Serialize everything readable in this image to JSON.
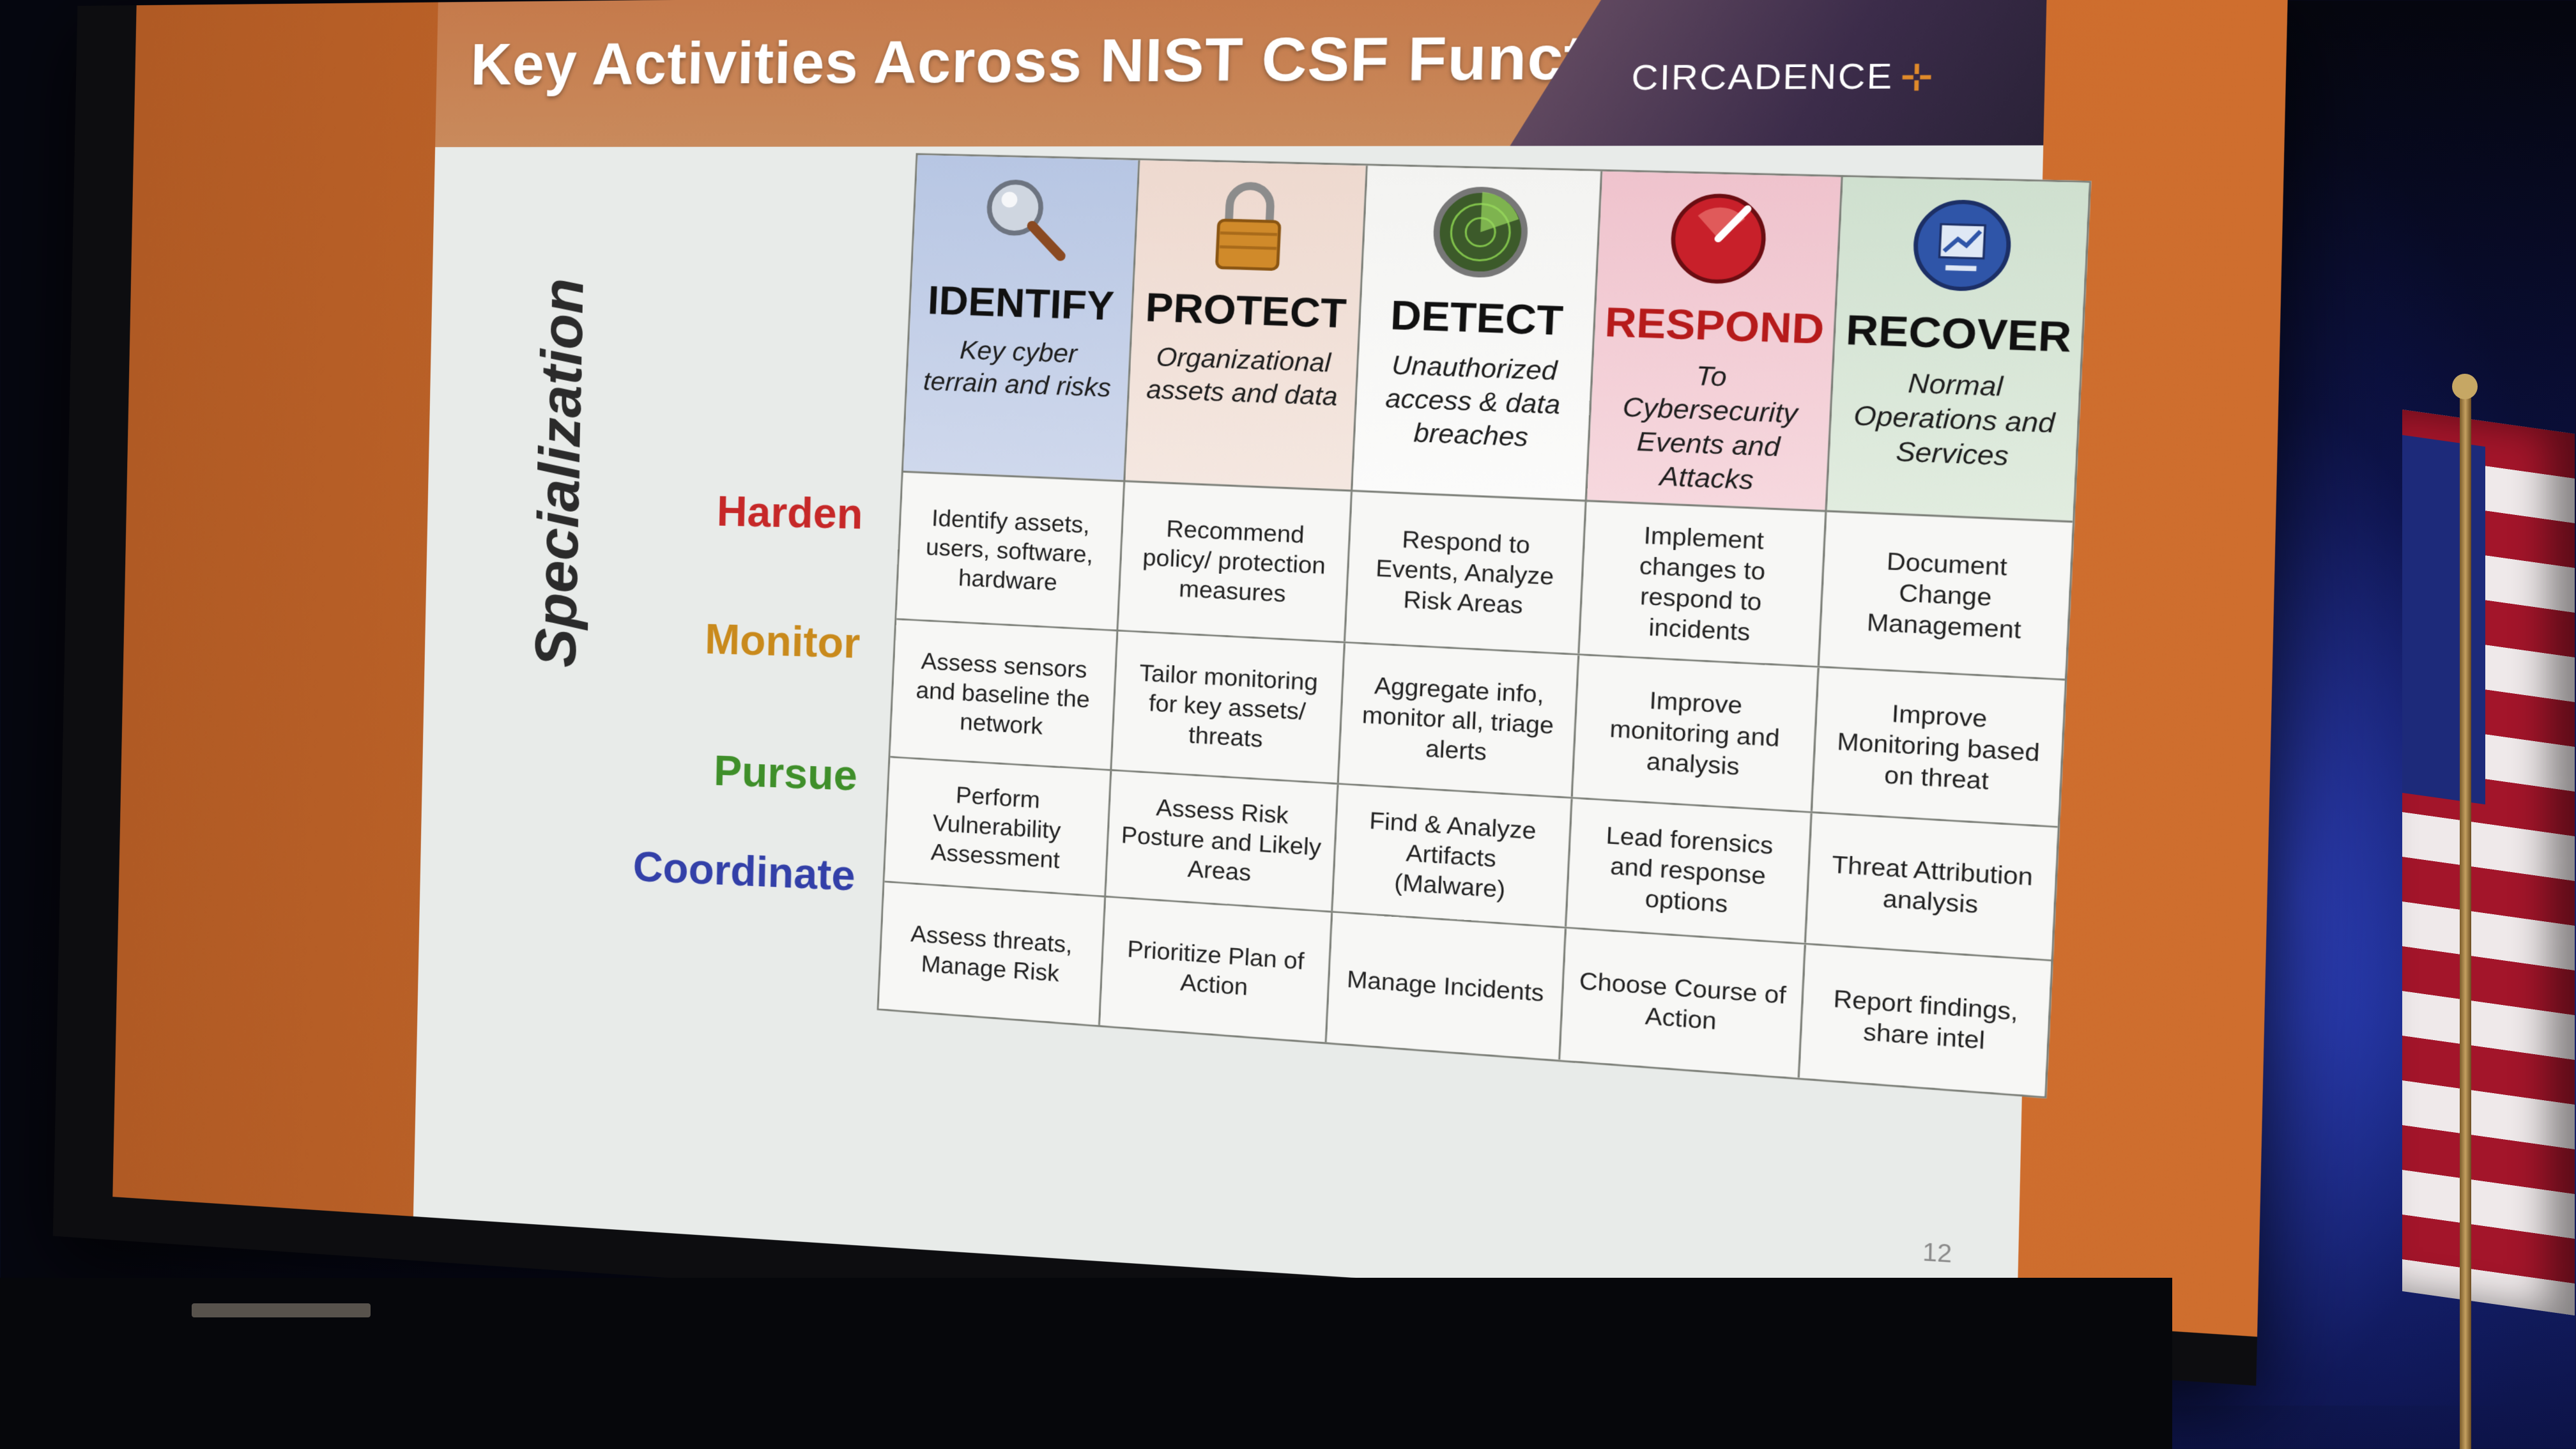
{
  "slide": {
    "title": "Key Activities Across NIST CSF Functions",
    "brand": "CIRCADENCE",
    "brand_mark": "⊹",
    "page_number": "12",
    "vertical_label": "Specialization"
  },
  "functions": [
    {
      "name": "IDENTIFY",
      "description": "Key cyber terrain and risks",
      "icon": "magnifier-icon"
    },
    {
      "name": "PROTECT",
      "description": "Organizational assets and data",
      "icon": "padlock-icon"
    },
    {
      "name": "DETECT",
      "description": "Unauthorized access & data breaches",
      "icon": "radar-icon"
    },
    {
      "name": "RESPOND",
      "description": "To Cybersecurity Events and Attacks",
      "icon": "alert-dial-icon"
    },
    {
      "name": "RECOVER",
      "description": "Normal Operations and Services",
      "icon": "recovery-globe-icon"
    }
  ],
  "rows": [
    {
      "label": "Harden",
      "color": "#c62828",
      "cells": [
        "Identify assets, users, software, hardware",
        "Recommend policy/ protection measures",
        "Respond to Events, Analyze Risk Areas",
        "Implement changes to respond to incidents",
        "Document Change Management"
      ]
    },
    {
      "label": "Monitor",
      "color": "#c98a1c",
      "cells": [
        "Assess sensors and baseline the network",
        "Tailor monitoring for key assets/ threats",
        "Aggregate info, monitor all, triage alerts",
        "Improve monitoring and analysis",
        "Improve Monitoring based on threat"
      ]
    },
    {
      "label": "Pursue",
      "color": "#3f8f2a",
      "cells": [
        "Perform Vulnerability Assessment",
        "Assess Risk Posture and Likely Areas",
        "Find & Analyze Artifacts (Malware)",
        "Lead forensics and response options",
        "Threat Attribution analysis"
      ]
    },
    {
      "label": "Coordinate",
      "color": "#3340a8",
      "cells": [
        "Assess threats, Manage Risk",
        "Prioritize Plan of Action",
        "Manage Incidents",
        "Choose Course of Action",
        "Report findings, share intel"
      ]
    }
  ]
}
